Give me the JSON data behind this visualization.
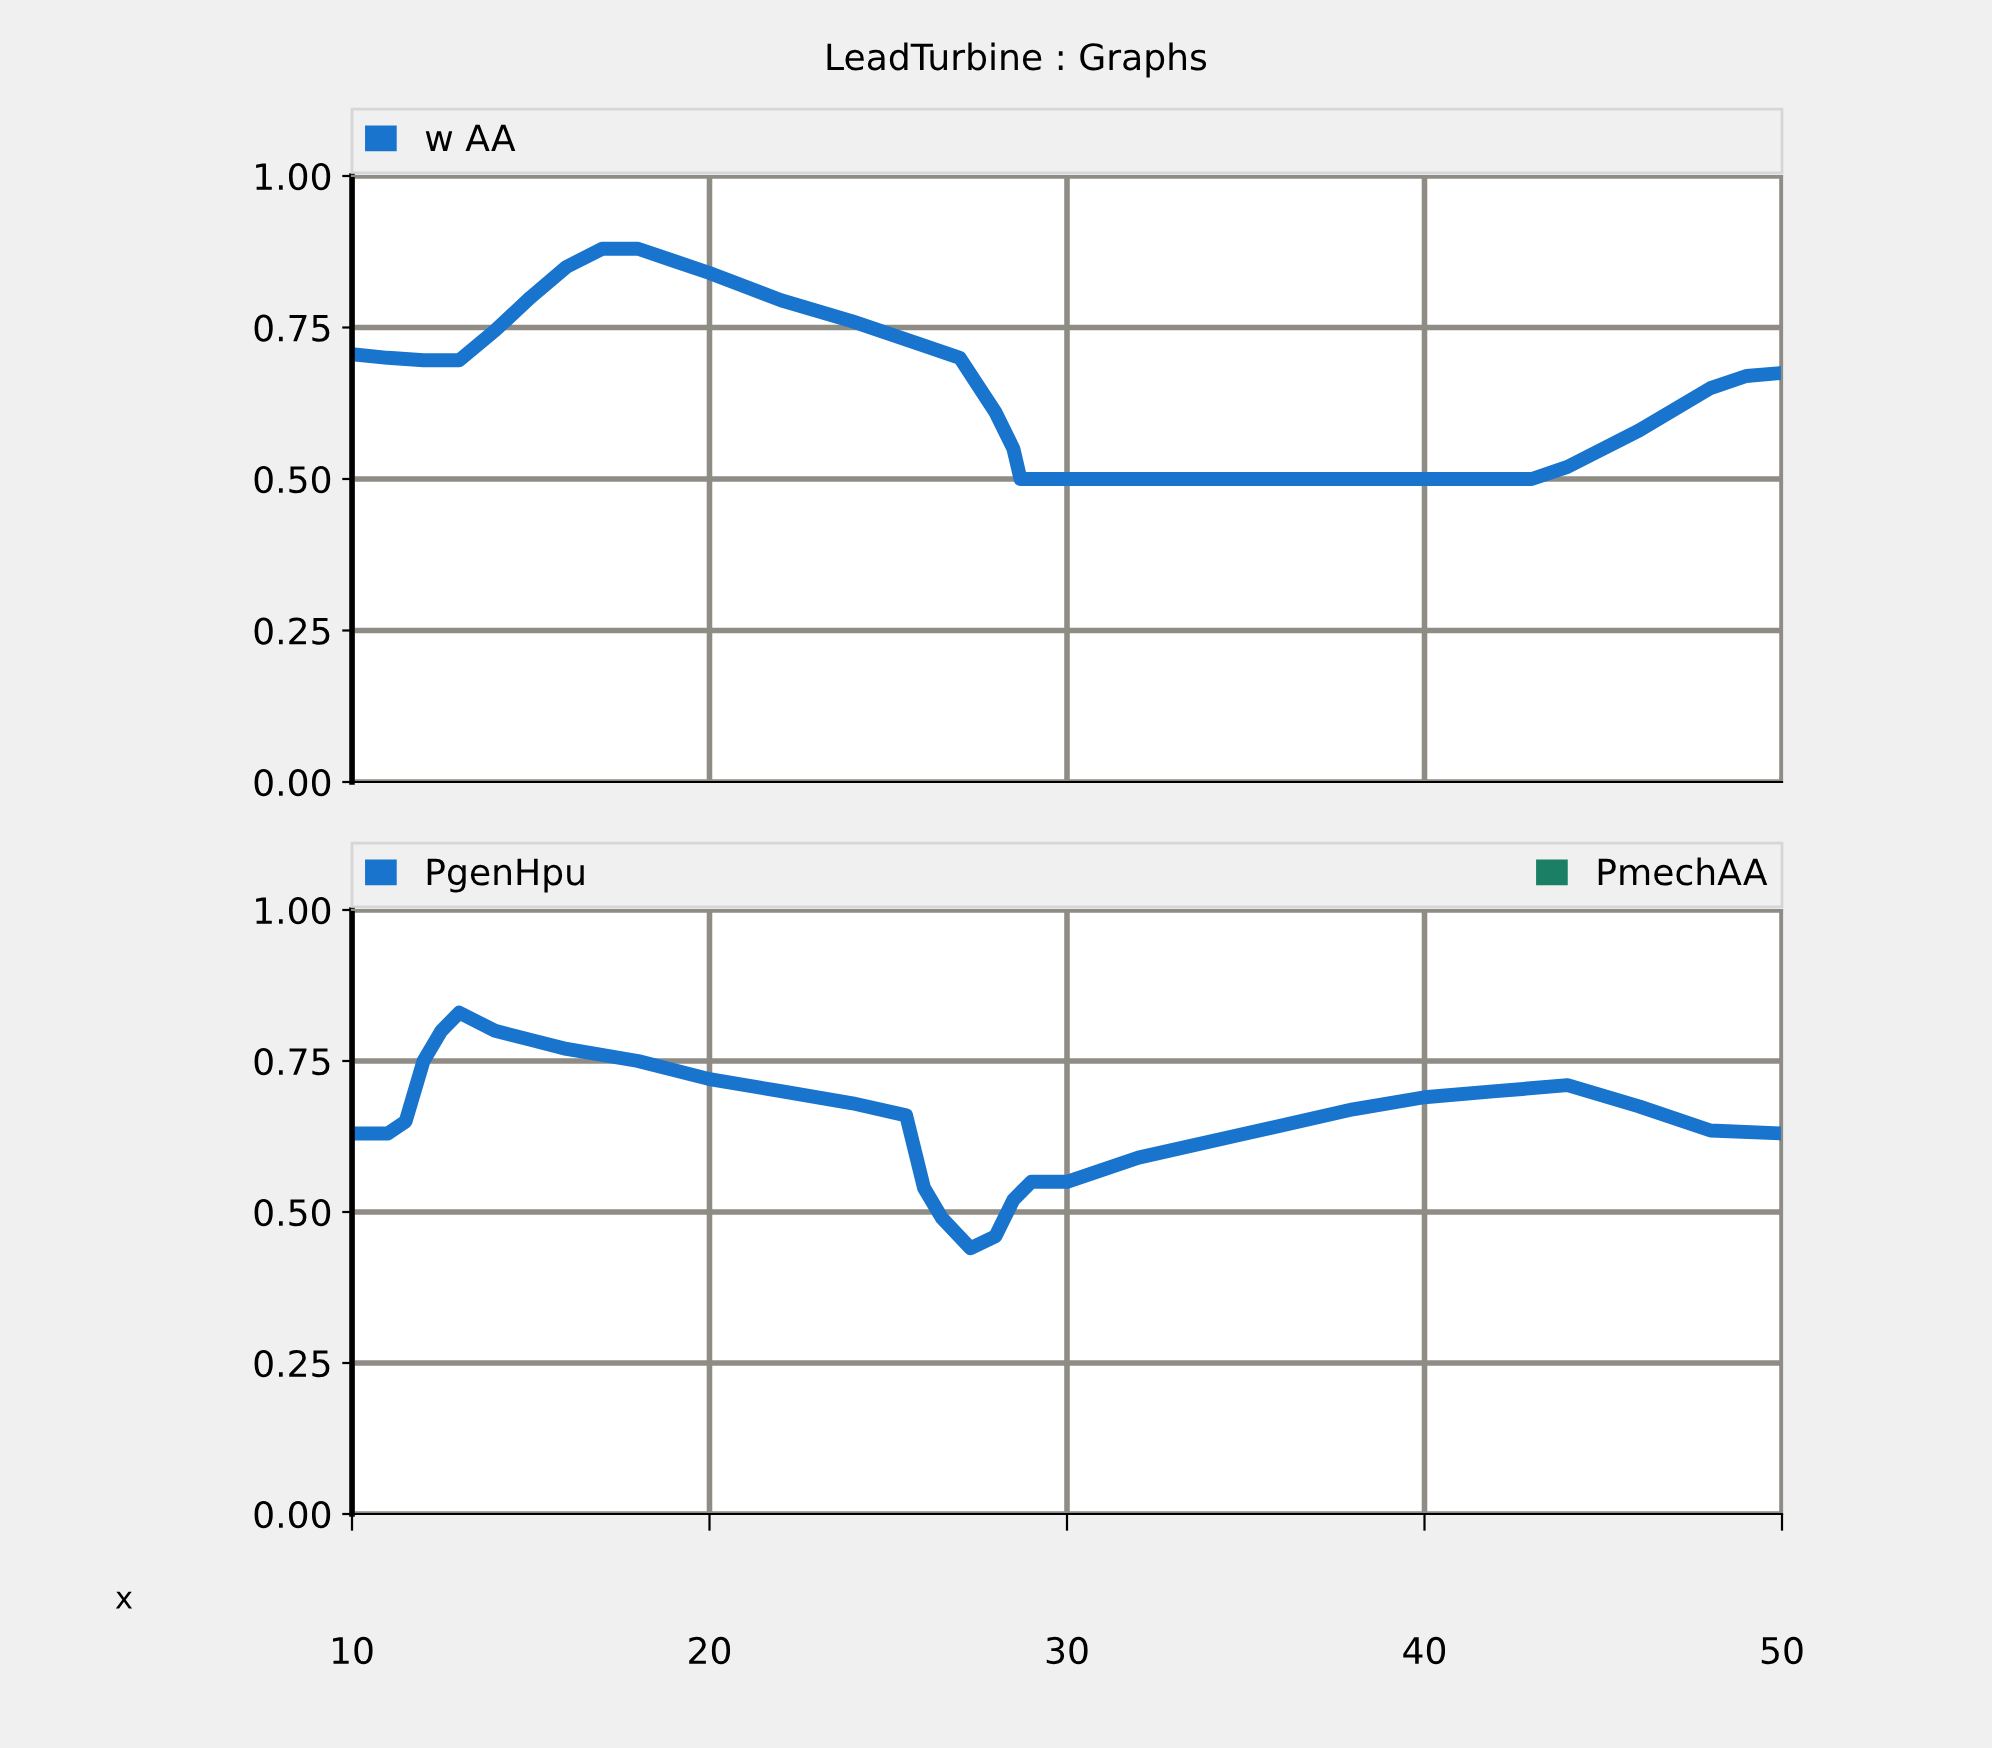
{
  "chart_data": [
    {
      "type": "line",
      "title": "LeadTurbine : Graphs",
      "xlim": [
        10,
        50
      ],
      "xticks": [
        10,
        20,
        30,
        40,
        50
      ],
      "ylim": [
        0,
        1.0
      ],
      "yticks": [
        {
          "value": 0,
          "label": "0.00"
        },
        {
          "value": 0.25,
          "label": "0.25"
        },
        {
          "value": 0.5,
          "label": "0.50"
        },
        {
          "value": 0.75,
          "label": "0.75"
        },
        {
          "value": 1.0,
          "label": "1.00"
        }
      ],
      "grid": true,
      "legend": "top left",
      "tick_labels": "y",
      "series": [
        {
          "name": "w AA",
          "color": "#1874cd",
          "x": [
            10,
            11,
            12,
            13,
            14,
            15,
            16,
            17,
            18,
            19,
            20,
            22,
            24,
            26,
            27,
            28,
            28.5,
            28.7,
            43,
            44,
            46,
            48,
            49,
            50
          ],
          "values": [
            0.706,
            0.7,
            0.696,
            0.696,
            0.745,
            0.8,
            0.85,
            0.88,
            0.88,
            0.86,
            0.84,
            0.795,
            0.76,
            0.72,
            0.7,
            0.61,
            0.55,
            0.5,
            0.5,
            0.52,
            0.58,
            0.65,
            0.67,
            0.675
          ]
        }
      ]
    },
    {
      "type": "line",
      "xlabel": "x",
      "xlim": [
        10,
        50
      ],
      "xticks": [
        10,
        20,
        30,
        40,
        50
      ],
      "ylim": [
        0,
        1.0
      ],
      "yticks": [
        {
          "value": 0,
          "label": "0.00"
        },
        {
          "value": 0.25,
          "label": "0.25"
        },
        {
          "value": 0.5,
          "label": "0.50"
        },
        {
          "value": 0.75,
          "label": "0.75"
        },
        {
          "value": 1.0,
          "label": "1.00"
        }
      ],
      "grid": true,
      "legend": "top left",
      "series": [
        {
          "name": "PgenHpu",
          "color": "#1874cd",
          "x": [
            10,
            11,
            11.5,
            12,
            12.5,
            13,
            14,
            15,
            16,
            18,
            20,
            22,
            24,
            25.5,
            26,
            26.5,
            27.3,
            28,
            28.5,
            29,
            30,
            32,
            35,
            38,
            40,
            42,
            44,
            46,
            48,
            50
          ],
          "values": [
            0.63,
            0.63,
            0.65,
            0.75,
            0.8,
            0.83,
            0.8,
            0.785,
            0.77,
            0.75,
            0.72,
            0.7,
            0.68,
            0.66,
            0.54,
            0.49,
            0.44,
            0.46,
            0.52,
            0.55,
            0.55,
            0.59,
            0.63,
            0.67,
            0.69,
            0.7,
            0.71,
            0.675,
            0.635,
            0.63
          ]
        },
        {
          "name": "PmechAA",
          "color": "#1a7f64"
        }
      ]
    }
  ]
}
